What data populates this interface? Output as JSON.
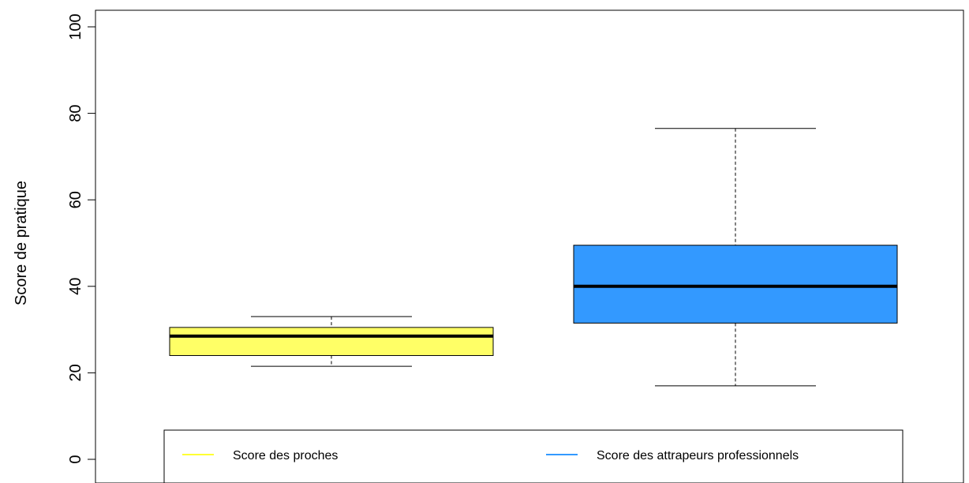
{
  "chart_data": {
    "type": "boxplot",
    "title": "",
    "xlabel": "",
    "ylabel": "Score de pratique",
    "ylim": [
      0,
      100
    ],
    "y_ticks": [
      0,
      20,
      40,
      60,
      80,
      100
    ],
    "grid": false,
    "legend_position": "bottom",
    "series": [
      {
        "name": "Score des proches",
        "color": "#FFFF66",
        "legend_color": "#FFFF33",
        "whisker_low": 21.5,
        "q1": 24,
        "median": 28.5,
        "q3": 30.5,
        "whisker_high": 33
      },
      {
        "name": "Score des attrapeurs professionnels",
        "color": "#3399FF",
        "legend_color": "#3399FF",
        "whisker_low": 17,
        "q1": 31.5,
        "median": 40,
        "q3": 49.5,
        "whisker_high": 76.5
      }
    ]
  }
}
